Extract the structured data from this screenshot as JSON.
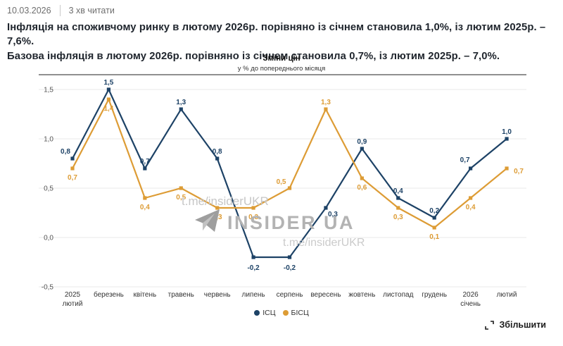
{
  "meta": {
    "date": "10.03.2026",
    "read_time": "3 хв читати"
  },
  "headline": {
    "line1": "Інфляція на споживчому ринку в лютому 2026р. порівняно із січнем становила 1,0%, із лютим 2025р. – 7,6%.",
    "line2": "Базова інфляція в лютому 2026р. порівняно із січнем становила 0,7%, із лютим 2025р. – 7,0%."
  },
  "chart_data": {
    "type": "line",
    "title": "Зміни цін",
    "subtitle": "у % до попереднього місяця",
    "categories": [
      "2025 лютий",
      "березень",
      "квітень",
      "травень",
      "червень",
      "липень",
      "серпень",
      "вересень",
      "жовтень",
      "листопад",
      "грудень",
      "2026 січень",
      "лютий"
    ],
    "series": [
      {
        "name": "ІСЦ",
        "color": "#1d4266",
        "values": [
          0.8,
          1.5,
          0.7,
          1.3,
          0.8,
          -0.2,
          -0.2,
          0.3,
          0.9,
          0.4,
          0.2,
          0.7,
          1.0
        ]
      },
      {
        "name": "БІСЦ",
        "color": "#dd9c35",
        "values": [
          0.7,
          1.4,
          0.4,
          0.5,
          0.3,
          0.3,
          0.5,
          1.3,
          0.6,
          0.3,
          0.1,
          0.4,
          0.7
        ]
      }
    ],
    "ylim": [
      -0.5,
      1.5
    ],
    "yticks": [
      1.5,
      1.0,
      0.5,
      0.0,
      -0.5
    ],
    "grid": true,
    "decimal_separator": ",",
    "legend_position": "bottom",
    "xlabel": "",
    "ylabel": ""
  },
  "legend": {
    "items": [
      {
        "label": "ІСЦ",
        "color": "#1d4266"
      },
      {
        "label": "БІСЦ",
        "color": "#dd9c35"
      }
    ]
  },
  "watermark": {
    "handle_top": "t.me/insiderUKR",
    "brand": "INSIDER UA",
    "handle_bottom": "t.me/insiderUKR"
  },
  "zoom_button": {
    "label": "Збільшити"
  }
}
